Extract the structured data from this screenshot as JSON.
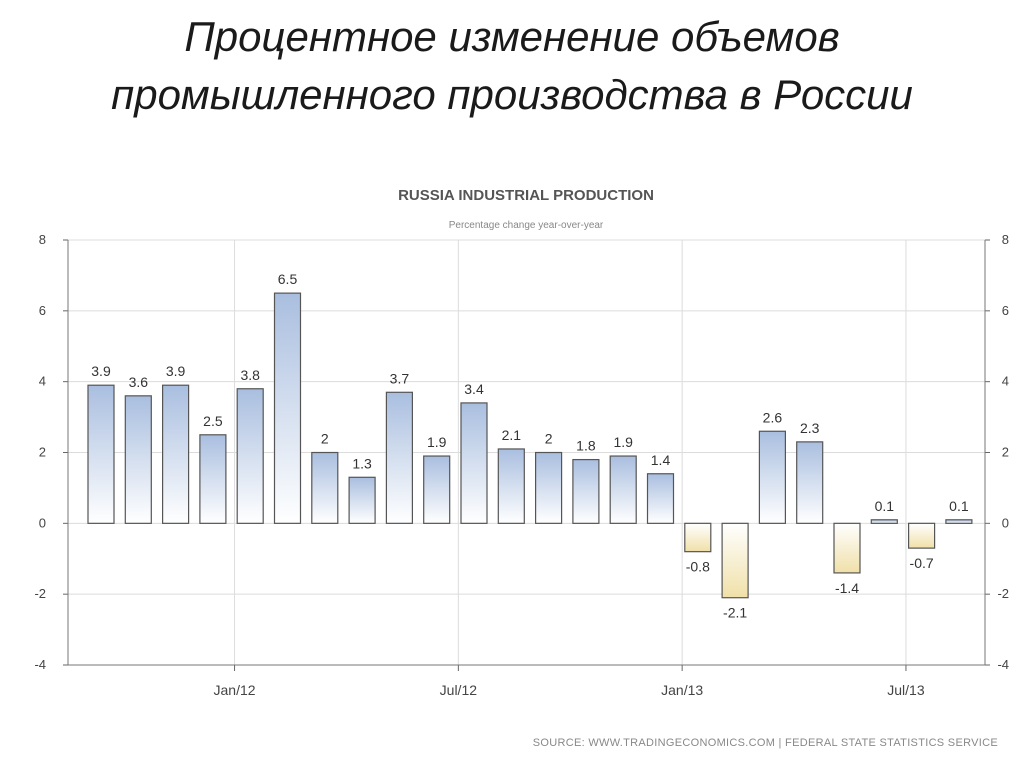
{
  "slide": {
    "title_line1": "Процентное изменение объемов",
    "title_line2": "промышленного производства в России"
  },
  "chart_data": {
    "type": "bar",
    "title": "RUSSIA INDUSTRIAL PRODUCTION",
    "subtitle": "Percentage change year-over-year",
    "source": "SOURCE: WWW.TRADINGECONOMICS.COM | FEDERAL STATE STATISTICS SERVICE",
    "values": [
      3.9,
      3.6,
      3.9,
      2.5,
      3.8,
      6.5,
      2,
      1.3,
      3.7,
      1.9,
      3.4,
      2.1,
      2,
      1.8,
      1.9,
      1.4,
      -0.8,
      -2.1,
      2.6,
      2.3,
      -1.4,
      0.1,
      -0.7,
      0.1
    ],
    "data_labels": [
      "3.9",
      "3.6",
      "3.9",
      "2.5",
      "3.8",
      "6.5",
      "2",
      "1.3",
      "3.7",
      "1.9",
      "3.4",
      "2.1",
      "2",
      "1.8",
      "1.9",
      "1.4",
      "-0.8",
      "-2.1",
      "2.6",
      "2.3",
      "-1.4",
      "0.1",
      "-0.7",
      "0.1"
    ],
    "x_tick_labels": [
      {
        "label": "Jan/12",
        "bar_index": 3
      },
      {
        "label": "Jul/12",
        "bar_index": 9
      },
      {
        "label": "Jan/13",
        "bar_index": 15
      },
      {
        "label": "Jul/13",
        "bar_index": 21
      }
    ],
    "ylim": [
      -4,
      8
    ],
    "y_ticks": [
      -4,
      -2,
      0,
      2,
      4,
      6,
      8
    ],
    "y_axis_sides": [
      "left",
      "right"
    ],
    "grid": true,
    "colors": {
      "positive_top": "#a9bedf",
      "positive_bottom": "#ffffff",
      "negative_top": "#ffffff",
      "negative_bottom": "#f0e0a8",
      "bar_stroke": "#555555",
      "grid": "#dcdcdc"
    }
  }
}
